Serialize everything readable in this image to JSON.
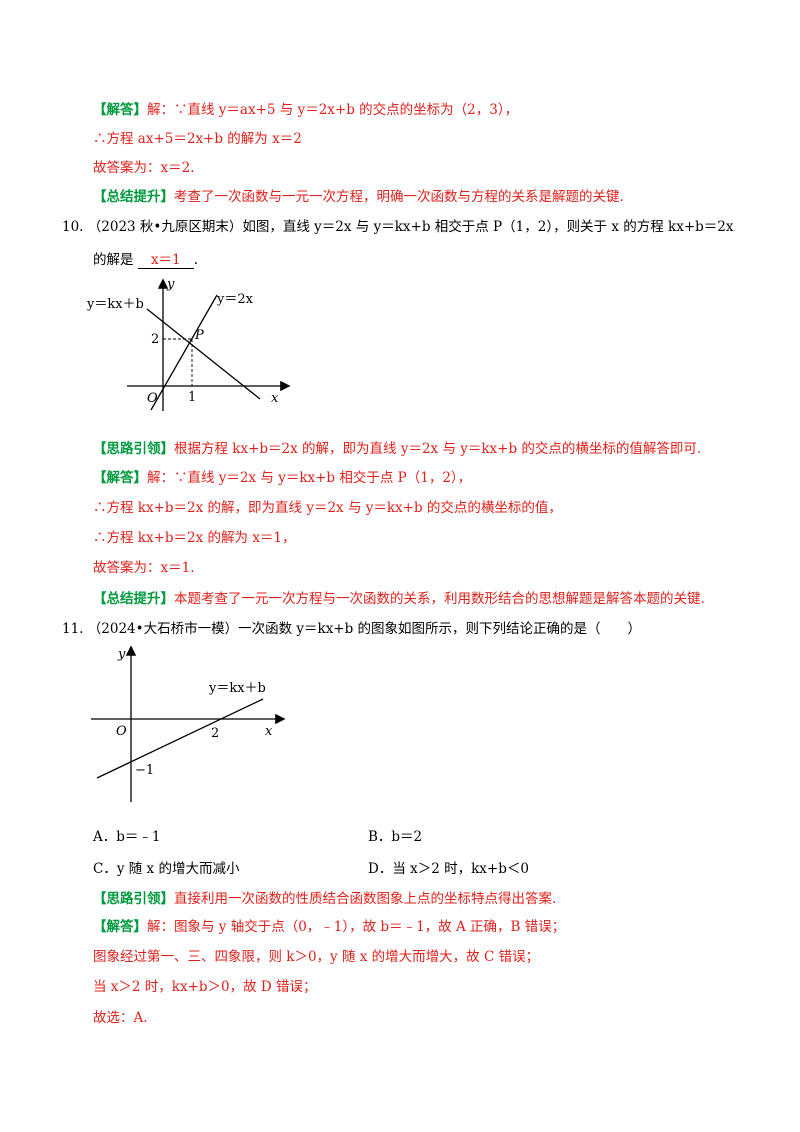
{
  "q9": {
    "answer_tag": "【解答】",
    "answer_line1": "解：∵直线 y＝ax+5 与 y＝2x+b 的交点的坐标为（2，3），",
    "answer_line2": "∴方程 ax+5＝2x+b 的解为 x＝2",
    "answer_line3": "故答案为：x＝2.",
    "summary_tag": "【总结提升】",
    "summary_text": "考查了一次函数与一元一次方程，明确一次函数与方程的关系是解题的关键."
  },
  "q10": {
    "number": "10.",
    "stem_line1": "（2023 秋•九原区期末）如图，直线 y＝2x 与 y＝kx+b 相交于点 P（1，2），则关于 x 的方程 kx+b＝2x",
    "stem_line2_prefix": "的解是",
    "blank_answer": "x＝1",
    "stem_line2_suffix": ".",
    "graph": {
      "label_kx": "y＝kx＋b",
      "label_2x": "y＝2x",
      "label_y": "y",
      "label_x": "x",
      "label_o": "O",
      "label_p": "P",
      "tick_y": "2",
      "tick_x": "1"
    },
    "hint_tag": "【思路引领】",
    "hint_text": "根据方程 kx+b＝2x 的解，即为直线 y＝2x 与 y＝kx+b 的交点的横坐标的值解答即可.",
    "answer_tag": "【解答】",
    "answer_line1": "解：∵直线 y＝2x 与 y＝kx+b 相交于点 P（1，2），",
    "answer_line2": "∴方程 kx+b＝2x 的解，即为直线 y＝2x 与 y＝kx+b 的交点的横坐标的值，",
    "answer_line3": "∴方程 kx+b＝2x 的解为 x＝1，",
    "answer_line4": "故答案为：x＝1.",
    "summary_tag": "【总结提升】",
    "summary_text": "本题考查了一元一次方程与一次函数的关系，利用数形结合的思想解题是解答本题的关键."
  },
  "q11": {
    "number": "11.",
    "stem": "（2024•大石桥市一模）一次函数 y＝kx+b 的图象如图所示，则下列结论正确的是（　　）",
    "graph": {
      "label_line": "y＝kx＋b",
      "label_y": "y",
      "label_x": "x",
      "label_o": "O",
      "tick_x": "2",
      "tick_y": "−1"
    },
    "options": {
      "a": "A．b＝﹣1",
      "b": "B．b＝2",
      "c": "C．y 随 x 的增大而减小",
      "d": "D．当 x＞2 时，kx+b＜0"
    },
    "hint_tag": "【思路引领】",
    "hint_text": "直接利用一次函数的性质结合函数图象上点的坐标特点得出答案.",
    "answer_tag": "【解答】",
    "answer_line1": "解：图象与 y 轴交于点（0，﹣1），故 b＝﹣1，故 A 正确，B 错误；",
    "answer_line2": "图象经过第一、三、四象限，则 k＞0，y 随 x 的增大而增大，故 C 错误；",
    "answer_line3": "当 x＞2 时，kx+b＞0，故 D 错误；",
    "answer_line4": "故选：A."
  }
}
